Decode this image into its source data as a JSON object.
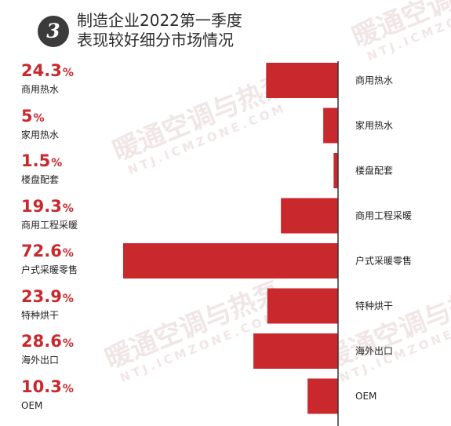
{
  "header": {
    "badge_number": "3",
    "title_line1": "制造企业2022第一季度",
    "title_line2": "表现较好细分市场情况"
  },
  "watermark": {
    "brand": "暖通空调与热泵",
    "domain": "NTJ.ICMZONE.COM"
  },
  "colors": {
    "accent": "#c9282d",
    "axis": "#333333",
    "text": "#222222",
    "badge": "#3b3b3b"
  },
  "chart_data": {
    "type": "bar",
    "orientation": "horizontal",
    "direction": "leftward",
    "title": "制造企业2022第一季度表现较好细分市场情况",
    "unit": "%",
    "xlim": [
      0,
      72.6
    ],
    "categories": [
      "商用热水",
      "家用热水",
      "楼盘配套",
      "商用工程采暖",
      "户式采暖零售",
      "特种烘干",
      "海外出口",
      "OEM"
    ],
    "series": [
      {
        "values": [
          24.3,
          5,
          1.5,
          19.3,
          72.6,
          23.9,
          28.6,
          10.3
        ]
      }
    ],
    "value_labels": [
      "24.3",
      "5",
      "1.5",
      "19.3",
      "72.6",
      "23.9",
      "28.6",
      "10.3"
    ],
    "grid": false,
    "legend": "none"
  }
}
